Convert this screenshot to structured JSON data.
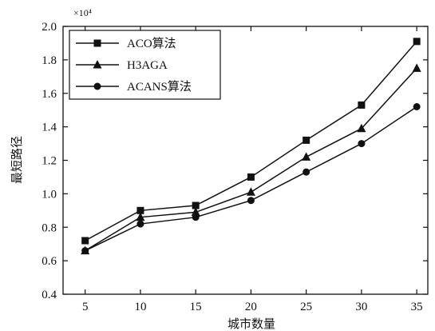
{
  "chart_data": {
    "type": "line",
    "x": [
      5,
      10,
      15,
      20,
      25,
      30,
      35
    ],
    "xlabel": "城市数量",
    "ylabel": "最短路径",
    "y_exponent_label": "×10⁴",
    "xlim": [
      3,
      36
    ],
    "ylim": [
      0.4,
      2.0
    ],
    "x_ticks": [
      5,
      10,
      15,
      20,
      25,
      30,
      35
    ],
    "y_ticks": [
      0.4,
      0.6,
      0.8,
      1.0,
      1.2,
      1.4,
      1.6,
      1.8,
      2.0
    ],
    "grid": false,
    "legend_position": "top-left",
    "series": [
      {
        "name": "ACO算法",
        "marker": "square",
        "values": [
          0.72,
          0.9,
          0.93,
          1.1,
          1.32,
          1.53,
          1.91
        ]
      },
      {
        "name": "H3AGA",
        "marker": "triangle",
        "values": [
          0.66,
          0.86,
          0.89,
          1.01,
          1.22,
          1.39,
          1.75
        ]
      },
      {
        "name": "ACANS算法",
        "marker": "circle",
        "values": [
          0.66,
          0.82,
          0.86,
          0.96,
          1.13,
          1.3,
          1.52
        ]
      }
    ],
    "line_color": "#111111"
  }
}
